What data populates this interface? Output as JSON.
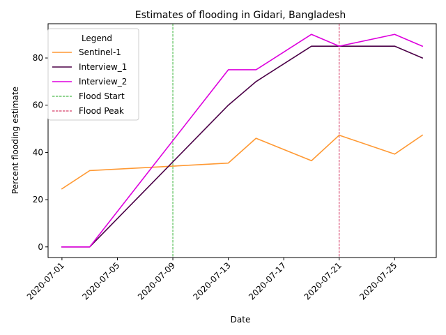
{
  "chart_data": {
    "type": "line",
    "title": "Estimates of flooding in Gidari, Bangladesh",
    "xlabel": "Date",
    "ylabel": "Percent flooding estimate",
    "x_axis": {
      "type": "date",
      "range": [
        "2020-06-30",
        "2020-07-28"
      ],
      "tick_labels": [
        "2020-07-01",
        "2020-07-05",
        "2020-07-09",
        "2020-07-13",
        "2020-07-17",
        "2020-07-21",
        "2020-07-25"
      ]
    },
    "y_axis": {
      "range": [
        -4.5,
        94.5
      ],
      "tick_values": [
        0,
        20,
        40,
        60,
        80
      ],
      "tick_labels": [
        "0",
        "20",
        "40",
        "60",
        "80"
      ]
    },
    "grid": false,
    "legend": {
      "title": "Legend",
      "location": "upper left"
    },
    "series": [
      {
        "name": "Sentinel-1",
        "color": "#ff9933",
        "x": [
          "2020-07-01",
          "2020-07-03",
          "2020-07-09",
          "2020-07-13",
          "2020-07-15",
          "2020-07-19",
          "2020-07-21",
          "2020-07-25",
          "2020-07-27"
        ],
        "y": [
          24.6,
          32.3,
          34.2,
          35.5,
          46.0,
          36.5,
          47.3,
          39.3,
          47.3
        ]
      },
      {
        "name": "Interview_1",
        "color": "#4b0047",
        "x": [
          "2020-07-01",
          "2020-07-03",
          "2020-07-13",
          "2020-07-15",
          "2020-07-19",
          "2020-07-21",
          "2020-07-25",
          "2020-07-27"
        ],
        "y": [
          0,
          0,
          60,
          70,
          85,
          85,
          85,
          80
        ]
      },
      {
        "name": "Interview_2",
        "color": "#dd00dd",
        "x": [
          "2020-07-01",
          "2020-07-03",
          "2020-07-13",
          "2020-07-15",
          "2020-07-19",
          "2020-07-21",
          "2020-07-25",
          "2020-07-27"
        ],
        "y": [
          0,
          0,
          75,
          75,
          90,
          85,
          90,
          85
        ]
      }
    ],
    "vlines": [
      {
        "name": "Flood Start",
        "x": "2020-07-09",
        "color": "#22aa22"
      },
      {
        "name": "Flood Peak",
        "x": "2020-07-21",
        "color": "#cc1144"
      }
    ]
  }
}
